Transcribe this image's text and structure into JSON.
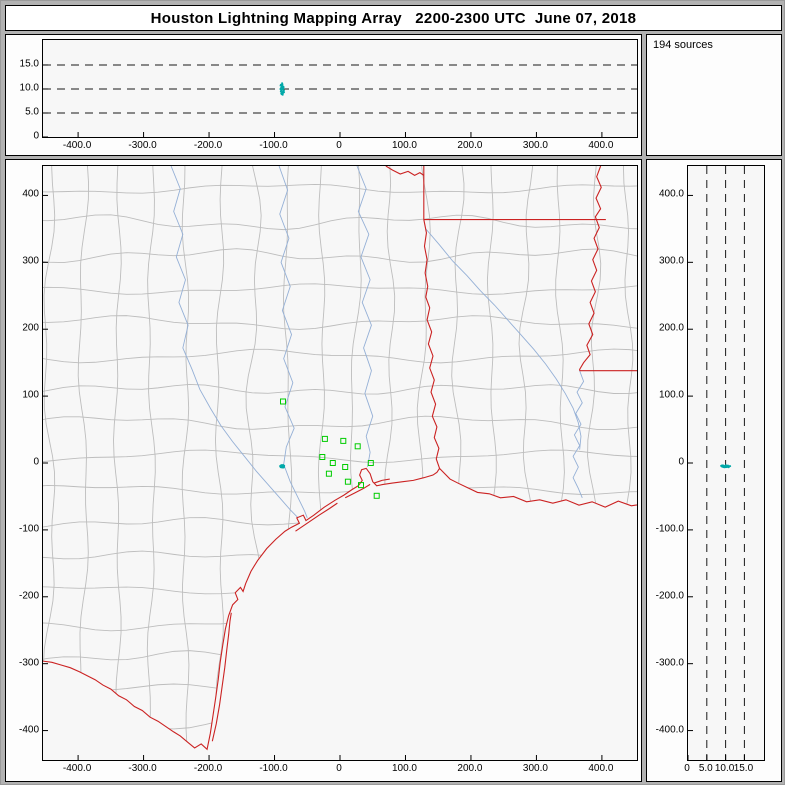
{
  "title": "Houston Lightning Mapping Array   2200-2300 UTC  June 07, 2018",
  "sources_panel": {
    "label": "194 sources"
  },
  "colors": {
    "frame_bg": "#b2b2b2",
    "panel_bg": "#fdfdfd",
    "plot_bg": "#f7f7f7",
    "county_line": "#bdbdbd",
    "state_line": "#cb2222",
    "river_line": "#95b0d6",
    "station": "#00cc00",
    "source": "#00a8a8",
    "dash_line": "#1a1a1a"
  },
  "lightning_sources": {
    "count": 194,
    "units": "km (east, north, altitude)",
    "points": [
      [
        -88.2,
        -4.1,
        9.9
      ],
      [
        -90.1,
        -5.3,
        10.2
      ],
      [
        -86.5,
        -6.0,
        9.4
      ],
      [
        -89.0,
        -3.8,
        10.6
      ],
      [
        -87.2,
        -5.5,
        9.1
      ],
      [
        -91.0,
        -4.6,
        10.0
      ],
      [
        -85.8,
        -4.9,
        9.7
      ],
      [
        -88.8,
        -6.2,
        10.3
      ],
      [
        -87.9,
        -5.0,
        11.0
      ],
      [
        -89.5,
        -4.2,
        9.0
      ],
      [
        -86.9,
        -3.5,
        10.1
      ],
      [
        -90.4,
        -5.8,
        9.5
      ],
      [
        -88.1,
        -6.5,
        10.8
      ],
      [
        -87.5,
        -4.4,
        8.8
      ],
      [
        -89.8,
        -5.1,
        9.6
      ],
      [
        -86.2,
        -5.7,
        10.4
      ],
      [
        -88.6,
        -3.9,
        9.2
      ],
      [
        -90.7,
        -4.8,
        10.7
      ],
      [
        -87.0,
        -6.3,
        9.8
      ],
      [
        -89.2,
        -5.9,
        10.0
      ],
      [
        -85.5,
        -4.3,
        9.3
      ],
      [
        -88.4,
        -4.7,
        11.2
      ],
      [
        -90.0,
        -6.1,
        9.9
      ],
      [
        -86.7,
        -5.2,
        10.5
      ],
      [
        -89.6,
        -3.6,
        9.1
      ],
      [
        -87.7,
        -5.6,
        10.2
      ],
      [
        -88.9,
        -4.0,
        8.9
      ],
      [
        -86.0,
        -6.4,
        9.6
      ],
      [
        -90.2,
        -5.4,
        10.9
      ],
      [
        -87.3,
        -3.7,
        9.4
      ]
    ]
  },
  "stations": [
    [
      -87,
      92
    ],
    [
      -23,
      36
    ],
    [
      5,
      33
    ],
    [
      27,
      25
    ],
    [
      -27,
      9
    ],
    [
      -11,
      0
    ],
    [
      47,
      0
    ],
    [
      8,
      -6
    ],
    [
      -17,
      -16
    ],
    [
      12,
      -28
    ],
    [
      32,
      -33
    ],
    [
      56,
      -49
    ]
  ],
  "chart_data": [
    {
      "id": "ew-altitude",
      "type": "scatter",
      "title": "",
      "xlabel": "",
      "ylabel": "",
      "xlim": [
        -453.6,
        453.6
      ],
      "ylim": [
        0,
        20.2
      ],
      "hlines": [
        5,
        10,
        15
      ],
      "x_ticks": [
        {
          "v": -400,
          "l": "-400.0"
        },
        {
          "v": -300,
          "l": "-300.0"
        },
        {
          "v": -200,
          "l": "-200.0"
        },
        {
          "v": -100,
          "l": "-100.0"
        },
        {
          "v": 0,
          "l": "0"
        },
        {
          "v": 100,
          "l": "100.0"
        },
        {
          "v": 200,
          "l": "200.0"
        },
        {
          "v": 300,
          "l": "300.0"
        },
        {
          "v": 400,
          "l": "400.0"
        }
      ],
      "y_ticks": [
        {
          "v": 0,
          "l": "0"
        },
        {
          "v": 5,
          "l": "5.0"
        },
        {
          "v": 10,
          "l": "10.0"
        },
        {
          "v": 15,
          "l": "15.0"
        }
      ],
      "points_from": "lightning_sources.points",
      "x_dim": "x_km",
      "y_dim": "alt_km"
    },
    {
      "id": "plan-view",
      "type": "scatter",
      "title": "",
      "xlabel": "",
      "ylabel": "",
      "xlim": [
        -453.6,
        453.6
      ],
      "ylim": [
        -444,
        444
      ],
      "x_ticks": [
        {
          "v": -400,
          "l": "-400.0"
        },
        {
          "v": -300,
          "l": "-300.0"
        },
        {
          "v": -200,
          "l": "-200.0"
        },
        {
          "v": -100,
          "l": "-100.0"
        },
        {
          "v": 0,
          "l": "0"
        },
        {
          "v": 100,
          "l": "100.0"
        },
        {
          "v": 200,
          "l": "200.0"
        },
        {
          "v": 300,
          "l": "300.0"
        },
        {
          "v": 400,
          "l": "400.0"
        }
      ],
      "y_ticks": [
        {
          "v": 400,
          "l": "400"
        },
        {
          "v": 300,
          "l": "300"
        },
        {
          "v": 200,
          "l": "200"
        },
        {
          "v": 100,
          "l": "100"
        },
        {
          "v": 0,
          "l": "0"
        },
        {
          "v": -100,
          "l": "-100"
        },
        {
          "v": -200,
          "l": "-200"
        },
        {
          "v": -300,
          "l": "-300"
        },
        {
          "v": -400,
          "l": "-400"
        }
      ],
      "points_from": "lightning_sources.points",
      "x_dim": "x_km",
      "y_dim": "y_km",
      "overlays": [
        "county-boundaries",
        "state-boundaries",
        "coastline",
        "rivers",
        "lma-stations"
      ]
    },
    {
      "id": "ns-altitude",
      "type": "scatter",
      "title": "",
      "xlabel": "",
      "ylabel": "",
      "xlim": [
        0,
        20.2
      ],
      "ylim": [
        -444,
        444
      ],
      "vlines": [
        5,
        10,
        15
      ],
      "x_ticks": [
        {
          "v": 0,
          "l": "0"
        },
        {
          "v": 5,
          "l": "5.0"
        },
        {
          "v": 10,
          "l": "10.0"
        },
        {
          "v": 15,
          "l": "15.0"
        }
      ],
      "y_ticks": [
        {
          "v": 400,
          "l": "400.0"
        },
        {
          "v": 300,
          "l": "300.0"
        },
        {
          "v": 200,
          "l": "200.0"
        },
        {
          "v": 100,
          "l": "100.0"
        },
        {
          "v": 0,
          "l": "0"
        },
        {
          "v": -100,
          "l": "-100.0"
        },
        {
          "v": -200,
          "l": "-200.0"
        },
        {
          "v": -300,
          "l": "-300.0"
        },
        {
          "v": -400,
          "l": "-400.0"
        }
      ],
      "points_from": "lightning_sources.points",
      "x_dim": "alt_km",
      "y_dim": "y_km"
    }
  ]
}
